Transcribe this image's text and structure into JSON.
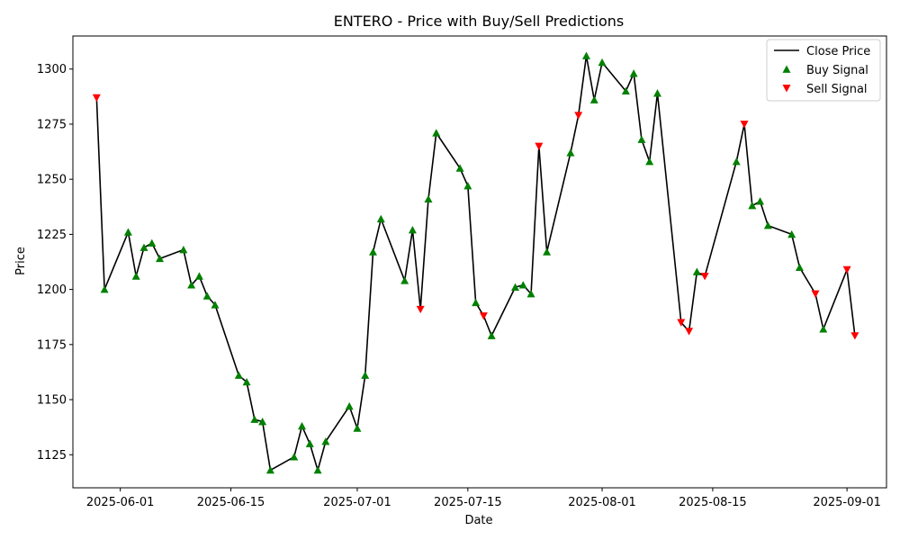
{
  "chart_data": {
    "type": "line",
    "title": "ENTERO - Price with Buy/Sell Predictions",
    "xlabel": "Date",
    "ylabel": "Price",
    "xlim": [
      "2025-05-26",
      "2025-09-06"
    ],
    "ylim": [
      1110,
      1315
    ],
    "x_ticks": [
      "2025-06-01",
      "2025-06-15",
      "2025-07-01",
      "2025-07-15",
      "2025-08-01",
      "2025-08-15",
      "2025-09-01"
    ],
    "y_ticks": [
      1125,
      1150,
      1175,
      1200,
      1225,
      1250,
      1275,
      1300
    ],
    "grid": false,
    "legend_position": "top-right",
    "series": [
      {
        "name": "Close Price",
        "color": "#000000",
        "marker": "line",
        "points": [
          [
            "2025-05-29",
            1287
          ],
          [
            "2025-05-30",
            1200
          ],
          [
            "2025-06-02",
            1226
          ],
          [
            "2025-06-03",
            1206
          ],
          [
            "2025-06-04",
            1219
          ],
          [
            "2025-06-05",
            1221
          ],
          [
            "2025-06-06",
            1214
          ],
          [
            "2025-06-09",
            1218
          ],
          [
            "2025-06-10",
            1202
          ],
          [
            "2025-06-11",
            1206
          ],
          [
            "2025-06-12",
            1197
          ],
          [
            "2025-06-13",
            1193
          ],
          [
            "2025-06-16",
            1161
          ],
          [
            "2025-06-17",
            1158
          ],
          [
            "2025-06-18",
            1141
          ],
          [
            "2025-06-19",
            1140
          ],
          [
            "2025-06-20",
            1118
          ],
          [
            "2025-06-23",
            1124
          ],
          [
            "2025-06-24",
            1138
          ],
          [
            "2025-06-25",
            1130
          ],
          [
            "2025-06-26",
            1118
          ],
          [
            "2025-06-27",
            1131
          ],
          [
            "2025-06-30",
            1147
          ],
          [
            "2025-07-01",
            1137
          ],
          [
            "2025-07-02",
            1161
          ],
          [
            "2025-07-03",
            1217
          ],
          [
            "2025-07-04",
            1232
          ],
          [
            "2025-07-07",
            1204
          ],
          [
            "2025-07-08",
            1227
          ],
          [
            "2025-07-09",
            1191
          ],
          [
            "2025-07-10",
            1241
          ],
          [
            "2025-07-11",
            1271
          ],
          [
            "2025-07-14",
            1255
          ],
          [
            "2025-07-15",
            1247
          ],
          [
            "2025-07-16",
            1194
          ],
          [
            "2025-07-17",
            1188
          ],
          [
            "2025-07-18",
            1179
          ],
          [
            "2025-07-21",
            1201
          ],
          [
            "2025-07-22",
            1202
          ],
          [
            "2025-07-23",
            1198
          ],
          [
            "2025-07-24",
            1265
          ],
          [
            "2025-07-25",
            1217
          ],
          [
            "2025-07-28",
            1262
          ],
          [
            "2025-07-29",
            1279
          ],
          [
            "2025-07-30",
            1306
          ],
          [
            "2025-07-31",
            1286
          ],
          [
            "2025-08-01",
            1303
          ],
          [
            "2025-08-04",
            1290
          ],
          [
            "2025-08-05",
            1298
          ],
          [
            "2025-08-06",
            1268
          ],
          [
            "2025-08-07",
            1258
          ],
          [
            "2025-08-08",
            1289
          ],
          [
            "2025-08-11",
            1185
          ],
          [
            "2025-08-12",
            1181
          ],
          [
            "2025-08-13",
            1208
          ],
          [
            "2025-08-14",
            1206
          ],
          [
            "2025-08-18",
            1258
          ],
          [
            "2025-08-19",
            1275
          ],
          [
            "2025-08-20",
            1238
          ],
          [
            "2025-08-21",
            1240
          ],
          [
            "2025-08-22",
            1229
          ],
          [
            "2025-08-25",
            1225
          ],
          [
            "2025-08-26",
            1210
          ],
          [
            "2025-08-28",
            1198
          ],
          [
            "2025-08-29",
            1182
          ],
          [
            "2025-09-01",
            1209
          ],
          [
            "2025-09-02",
            1179
          ]
        ]
      },
      {
        "name": "Buy Signal",
        "color": "#008000",
        "marker": "triangle-up",
        "points": [
          [
            "2025-05-30",
            1200
          ],
          [
            "2025-06-02",
            1226
          ],
          [
            "2025-06-03",
            1206
          ],
          [
            "2025-06-04",
            1219
          ],
          [
            "2025-06-05",
            1221
          ],
          [
            "2025-06-06",
            1214
          ],
          [
            "2025-06-09",
            1218
          ],
          [
            "2025-06-10",
            1202
          ],
          [
            "2025-06-11",
            1206
          ],
          [
            "2025-06-12",
            1197
          ],
          [
            "2025-06-13",
            1193
          ],
          [
            "2025-06-16",
            1161
          ],
          [
            "2025-06-17",
            1158
          ],
          [
            "2025-06-18",
            1141
          ],
          [
            "2025-06-19",
            1140
          ],
          [
            "2025-06-20",
            1118
          ],
          [
            "2025-06-23",
            1124
          ],
          [
            "2025-06-24",
            1138
          ],
          [
            "2025-06-25",
            1130
          ],
          [
            "2025-06-26",
            1118
          ],
          [
            "2025-06-27",
            1131
          ],
          [
            "2025-06-30",
            1147
          ],
          [
            "2025-07-01",
            1137
          ],
          [
            "2025-07-02",
            1161
          ],
          [
            "2025-07-03",
            1217
          ],
          [
            "2025-07-04",
            1232
          ],
          [
            "2025-07-07",
            1204
          ],
          [
            "2025-07-08",
            1227
          ],
          [
            "2025-07-10",
            1241
          ],
          [
            "2025-07-11",
            1271
          ],
          [
            "2025-07-14",
            1255
          ],
          [
            "2025-07-15",
            1247
          ],
          [
            "2025-07-16",
            1194
          ],
          [
            "2025-07-18",
            1179
          ],
          [
            "2025-07-21",
            1201
          ],
          [
            "2025-07-22",
            1202
          ],
          [
            "2025-07-23",
            1198
          ],
          [
            "2025-07-25",
            1217
          ],
          [
            "2025-07-28",
            1262
          ],
          [
            "2025-07-30",
            1306
          ],
          [
            "2025-07-31",
            1286
          ],
          [
            "2025-08-01",
            1303
          ],
          [
            "2025-08-04",
            1290
          ],
          [
            "2025-08-05",
            1298
          ],
          [
            "2025-08-06",
            1268
          ],
          [
            "2025-08-07",
            1258
          ],
          [
            "2025-08-08",
            1289
          ],
          [
            "2025-08-13",
            1208
          ],
          [
            "2025-08-18",
            1258
          ],
          [
            "2025-08-20",
            1238
          ],
          [
            "2025-08-21",
            1240
          ],
          [
            "2025-08-22",
            1229
          ],
          [
            "2025-08-25",
            1225
          ],
          [
            "2025-08-26",
            1210
          ],
          [
            "2025-08-29",
            1182
          ]
        ]
      },
      {
        "name": "Sell Signal",
        "color": "#ff0000",
        "marker": "triangle-down",
        "points": [
          [
            "2025-05-29",
            1287
          ],
          [
            "2025-07-09",
            1191
          ],
          [
            "2025-07-17",
            1188
          ],
          [
            "2025-07-24",
            1265
          ],
          [
            "2025-07-29",
            1279
          ],
          [
            "2025-08-11",
            1185
          ],
          [
            "2025-08-12",
            1181
          ],
          [
            "2025-08-14",
            1206
          ],
          [
            "2025-08-19",
            1275
          ],
          [
            "2025-08-28",
            1198
          ],
          [
            "2025-09-01",
            1209
          ],
          [
            "2025-09-02",
            1179
          ]
        ]
      }
    ]
  }
}
